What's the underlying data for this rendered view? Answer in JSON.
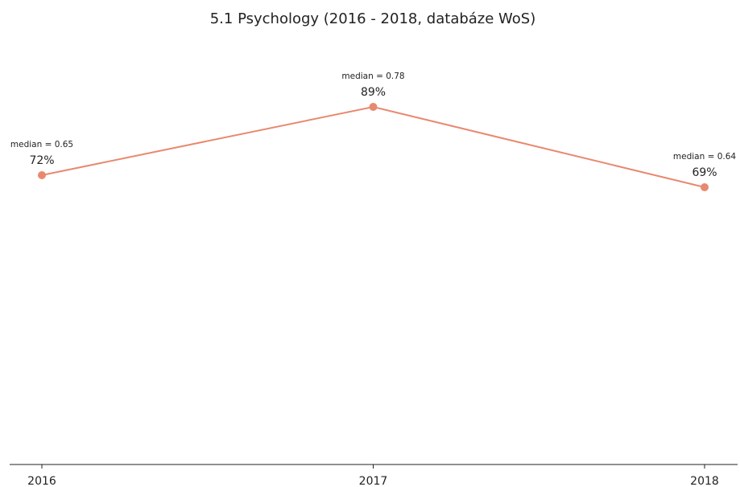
{
  "chart_data": {
    "type": "line",
    "title": "5.1 Psychology (2016 - 2018, databáze WoS)",
    "categories": [
      "2016",
      "2017",
      "2018"
    ],
    "series": [
      {
        "name": null,
        "color": "#e8896f",
        "values": [
          72,
          89,
          69
        ],
        "value_labels": [
          "72%",
          "89%",
          "69%"
        ],
        "annotations": [
          "median = 0.65",
          "median = 0.78",
          "median = 0.64"
        ]
      }
    ],
    "ylim": [
      0,
      100
    ]
  }
}
